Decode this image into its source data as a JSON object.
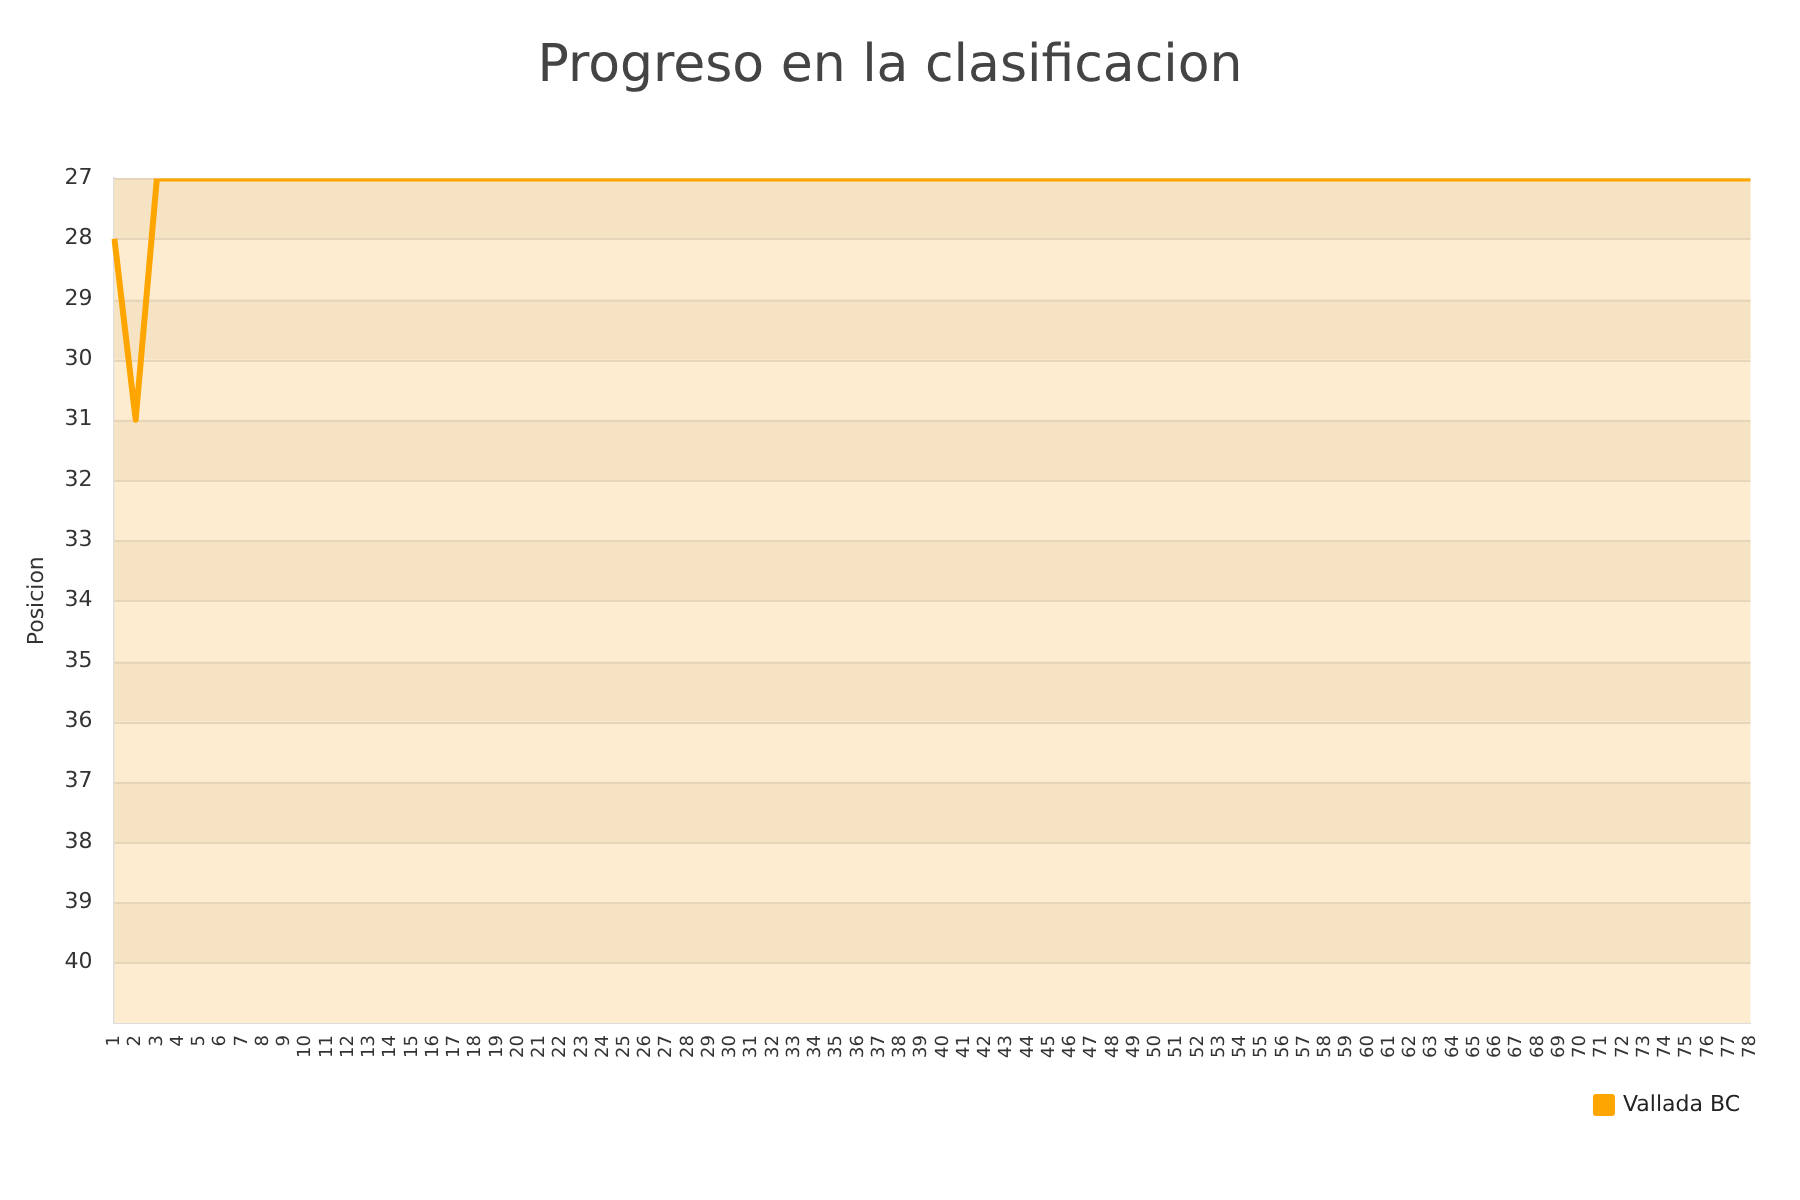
{
  "chart_data": {
    "type": "line",
    "title": "Progreso en la clasificacion",
    "ylabel": "Posicion",
    "categories": [
      "1",
      "2",
      "3",
      "4",
      "5",
      "6",
      "7",
      "8",
      "9",
      "10",
      "11",
      "12",
      "13",
      "14",
      "15",
      "16",
      "17",
      "18",
      "19",
      "20",
      "21",
      "22",
      "23",
      "24",
      "25",
      "26",
      "27",
      "28",
      "29",
      "30",
      "31",
      "32",
      "33",
      "34",
      "35",
      "36",
      "37",
      "38",
      "39",
      "40",
      "41",
      "42",
      "43",
      "44",
      "45",
      "46",
      "47",
      "48",
      "49",
      "50",
      "51",
      "52",
      "53",
      "54",
      "55",
      "56",
      "57",
      "58",
      "59",
      "60",
      "61",
      "62",
      "63",
      "64",
      "65",
      "66",
      "67",
      "68",
      "69",
      "70",
      "71",
      "72",
      "73",
      "74",
      "75",
      "76",
      "77",
      "78"
    ],
    "series": [
      {
        "name": "Vallada BC",
        "color": "#ffa500",
        "values": [
          28,
          31,
          27,
          27,
          27,
          27,
          27,
          27,
          27,
          27,
          27,
          27,
          27,
          27,
          27,
          27,
          27,
          27,
          27,
          27,
          27,
          27,
          27,
          27,
          27,
          27,
          27,
          27,
          27,
          27,
          27,
          27,
          27,
          27,
          27,
          27,
          27,
          27,
          27,
          27,
          27,
          27,
          27,
          27,
          27,
          27,
          27,
          27,
          27,
          27,
          27,
          27,
          27,
          27,
          27,
          27,
          27,
          27,
          27,
          27,
          27,
          27,
          27,
          27,
          27,
          27,
          27,
          27,
          27,
          27,
          27,
          27,
          27,
          27,
          27,
          27,
          27,
          27
        ]
      }
    ],
    "ylim": [
      41,
      27
    ],
    "yticks": [
      27,
      28,
      29,
      30,
      31,
      32,
      33,
      34,
      35,
      36,
      37,
      38,
      39,
      40
    ],
    "bands": [
      {
        "axis": "y",
        "from": 27,
        "to": 28,
        "color": "#f5e3c3"
      },
      {
        "axis": "y",
        "from": 29,
        "to": 30,
        "color": "#f5e3c3"
      },
      {
        "axis": "y",
        "from": 31,
        "to": 32,
        "color": "#f5e3c3"
      },
      {
        "axis": "y",
        "from": 33,
        "to": 34,
        "color": "#f5e3c3"
      },
      {
        "axis": "y",
        "from": 35,
        "to": 36,
        "color": "#f5e3c3"
      },
      {
        "axis": "y",
        "from": 37,
        "to": 38,
        "color": "#f5e3c3"
      },
      {
        "axis": "y",
        "from": 39,
        "to": 40,
        "color": "#f5e3c3"
      }
    ],
    "grid": "y",
    "legend": "bottom right",
    "marker": "none",
    "line_style": "solid"
  }
}
